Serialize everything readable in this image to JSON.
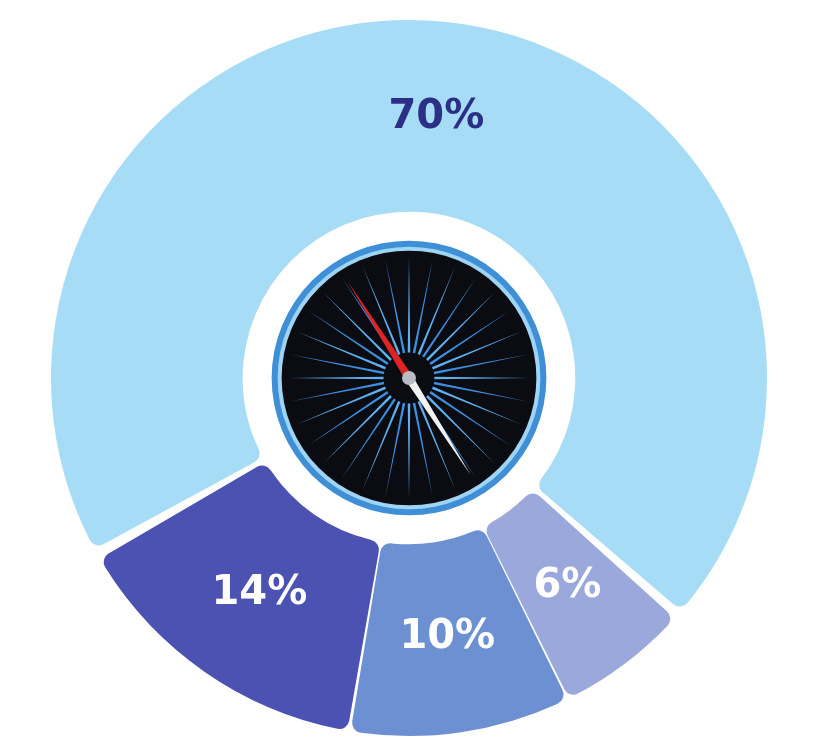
{
  "chart_data": {
    "type": "doughnut",
    "values": [
      70,
      6,
      10,
      14
    ],
    "value_labels": [
      "70%",
      "6%",
      "10%",
      "14%"
    ],
    "colors": [
      "#a6dcf6",
      "#9aa8dc",
      "#6c90d2",
      "#4b52b2"
    ],
    "data_labels": true
  }
}
